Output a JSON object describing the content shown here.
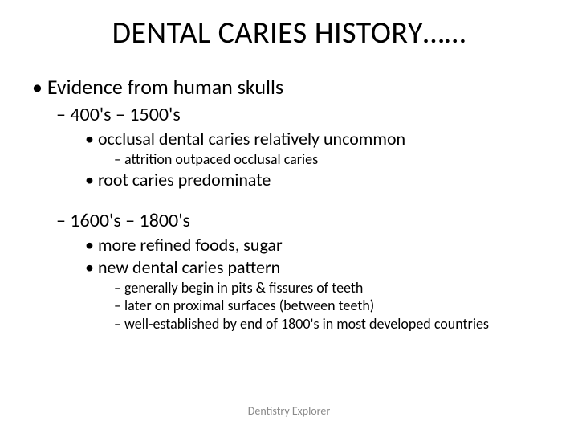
{
  "title": "DENTAL CARIES HISTORY……",
  "l1_evidence": "Evidence from human skulls",
  "l2_era1": "400's – 1500's",
  "l3_occlusal": "occlusal dental caries relatively uncommon",
  "l4_attrition": "attrition outpaced occlusal caries",
  "l3_root": "root caries predominate",
  "l2_era2": "1600's – 1800's",
  "l3_refined": "more refined foods, sugar",
  "l3_pattern": "new dental caries pattern",
  "l4_pits": "generally begin in pits & fissures of teeth",
  "l4_proximal": "later on proximal surfaces (between teeth)",
  "l4_established": "well-established by end of 1800's in most developed countries",
  "footer": "Dentistry Explorer",
  "colors": {
    "background": "#ffffff",
    "text": "#000000",
    "footer": "#8a8a8a"
  },
  "fonts": {
    "title_size": 38,
    "l1_size": 26,
    "l2_size": 24,
    "l3_size": 22,
    "l4_size": 18,
    "footer_size": 14
  }
}
